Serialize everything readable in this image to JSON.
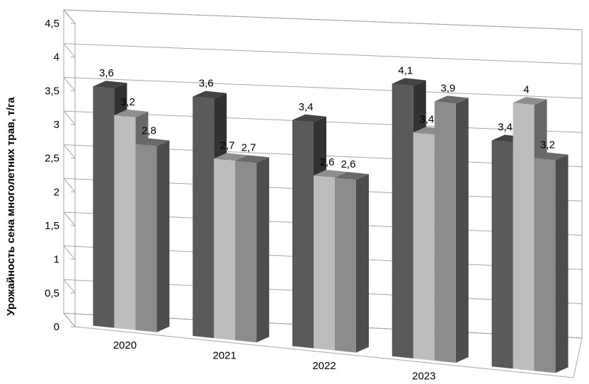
{
  "chart_data": {
    "type": "bar",
    "style": "3d-clustered-column",
    "ylabel": "Урожайность сена многолетних трав, т/га",
    "xlabel": "",
    "categories": [
      "2020",
      "2021",
      "2022",
      "2023",
      ""
    ],
    "series": [
      {
        "values": [
          3.6,
          3.6,
          3.4,
          4.1,
          3.4
        ],
        "color": "#5a5a5a"
      },
      {
        "values": [
          3.2,
          2.7,
          2.6,
          3.4,
          4.0
        ],
        "color": "#bdbdbd"
      },
      {
        "values": [
          2.8,
          2.7,
          2.6,
          3.9,
          3.2
        ],
        "color": "#8c8c8c"
      }
    ],
    "data_labels": [
      [
        "3,6",
        "3,6",
        "3,4",
        "4,1",
        "3,4"
      ],
      [
        "3,2",
        "2,7",
        "2,6",
        "3,4",
        "4"
      ],
      [
        "2,8",
        "2,7",
        "2,6",
        "3,9",
        "3,2"
      ]
    ],
    "ylim": [
      0,
      4.5
    ],
    "yticks": [
      "0",
      "0,5",
      "1",
      "1,5",
      "2",
      "2,5",
      "3",
      "3,5",
      "4",
      "4,5"
    ],
    "grid": true,
    "legend": "none"
  }
}
